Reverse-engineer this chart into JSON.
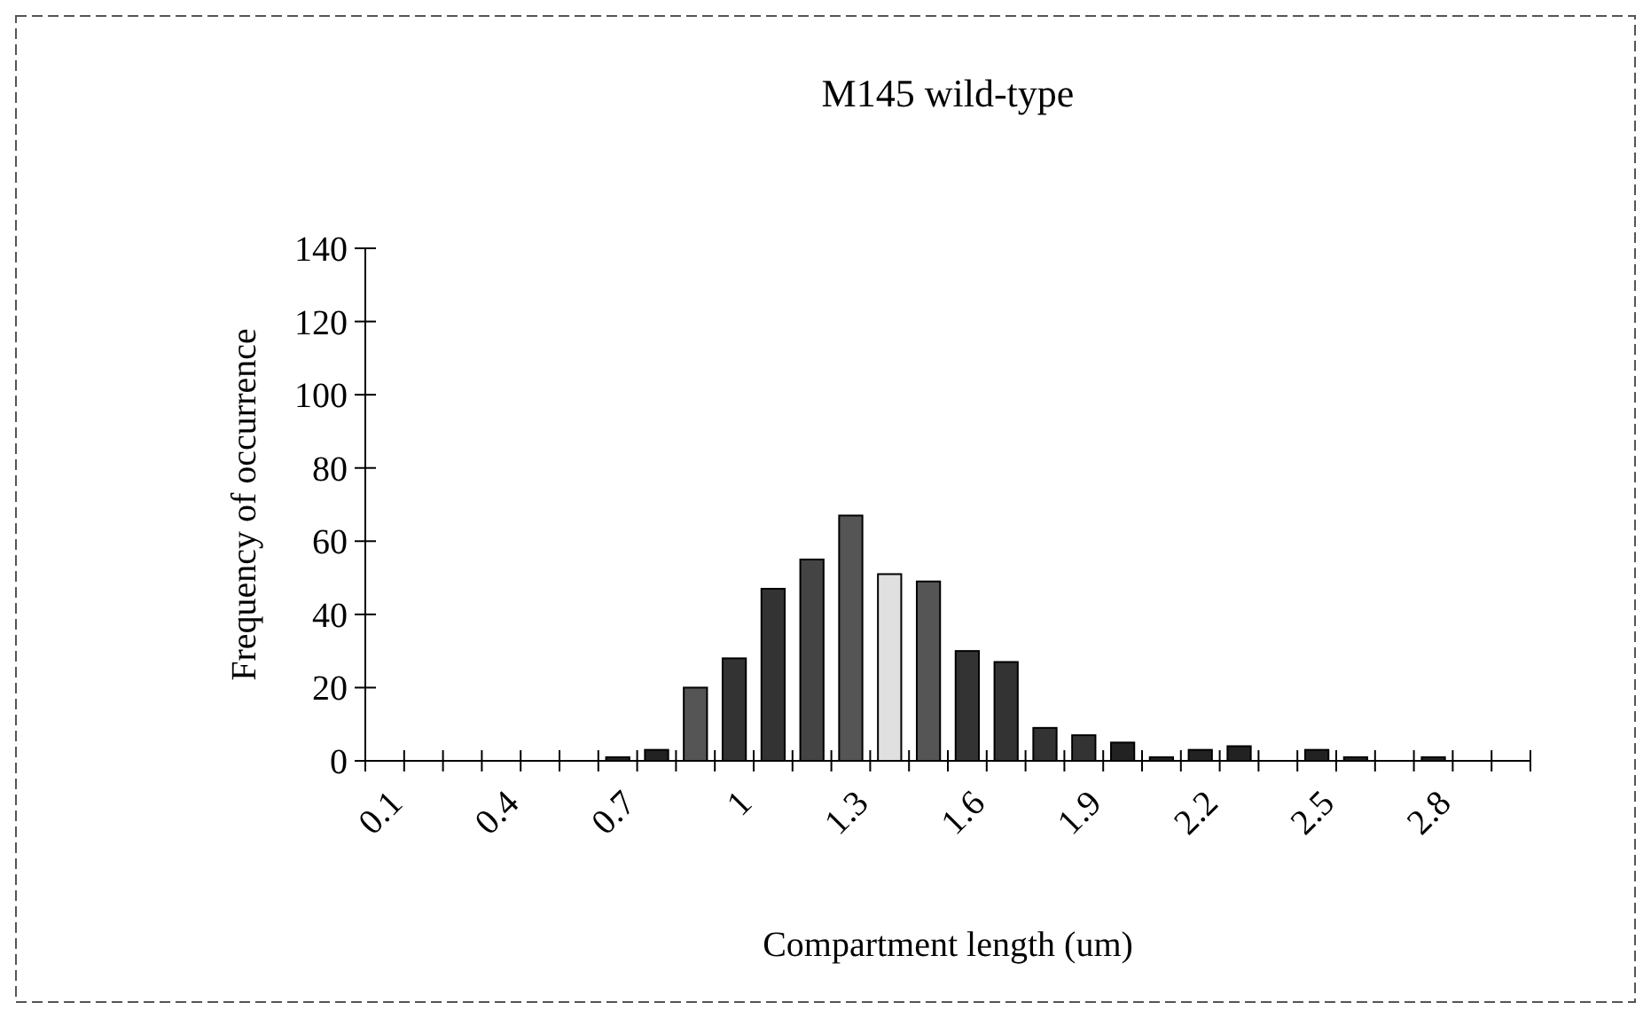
{
  "chart_data": {
    "type": "bar",
    "title": "M145 wild-type",
    "xlabel": "Compartment length (um)",
    "ylabel": "Frequency of occurrence",
    "categories": [
      "0.1",
      null,
      null,
      "0.4",
      null,
      null,
      "0.7",
      null,
      null,
      "1",
      null,
      null,
      "1.3",
      null,
      null,
      "1.6",
      null,
      null,
      "1.9",
      null,
      null,
      "2.2",
      null,
      null,
      "2.5",
      null,
      null,
      "2.8",
      null,
      null
    ],
    "values": [
      0,
      0,
      0,
      0,
      0,
      0,
      1,
      3,
      20,
      28,
      47,
      55,
      67,
      51,
      49,
      30,
      27,
      9,
      7,
      5,
      1,
      3,
      4,
      0,
      3,
      1,
      0,
      1,
      0,
      0
    ],
    "colors": [
      "#222222",
      "#222222",
      "#222222",
      "#222222",
      "#222222",
      "#222222",
      "#222222",
      "#222222",
      "#555555",
      "#333333",
      "#333333",
      "#444444",
      "#555555",
      "#e0e0e0",
      "#555555",
      "#333333",
      "#333333",
      "#333333",
      "#333333",
      "#222222",
      "#222222",
      "#222222",
      "#222222",
      "#222222",
      "#222222",
      "#222222",
      "#222222",
      "#222222",
      "#222222",
      "#222222"
    ],
    "ylim": [
      0,
      140
    ],
    "yticks": [
      0,
      20,
      40,
      60,
      80,
      100,
      120,
      140
    ],
    "grid": false
  }
}
